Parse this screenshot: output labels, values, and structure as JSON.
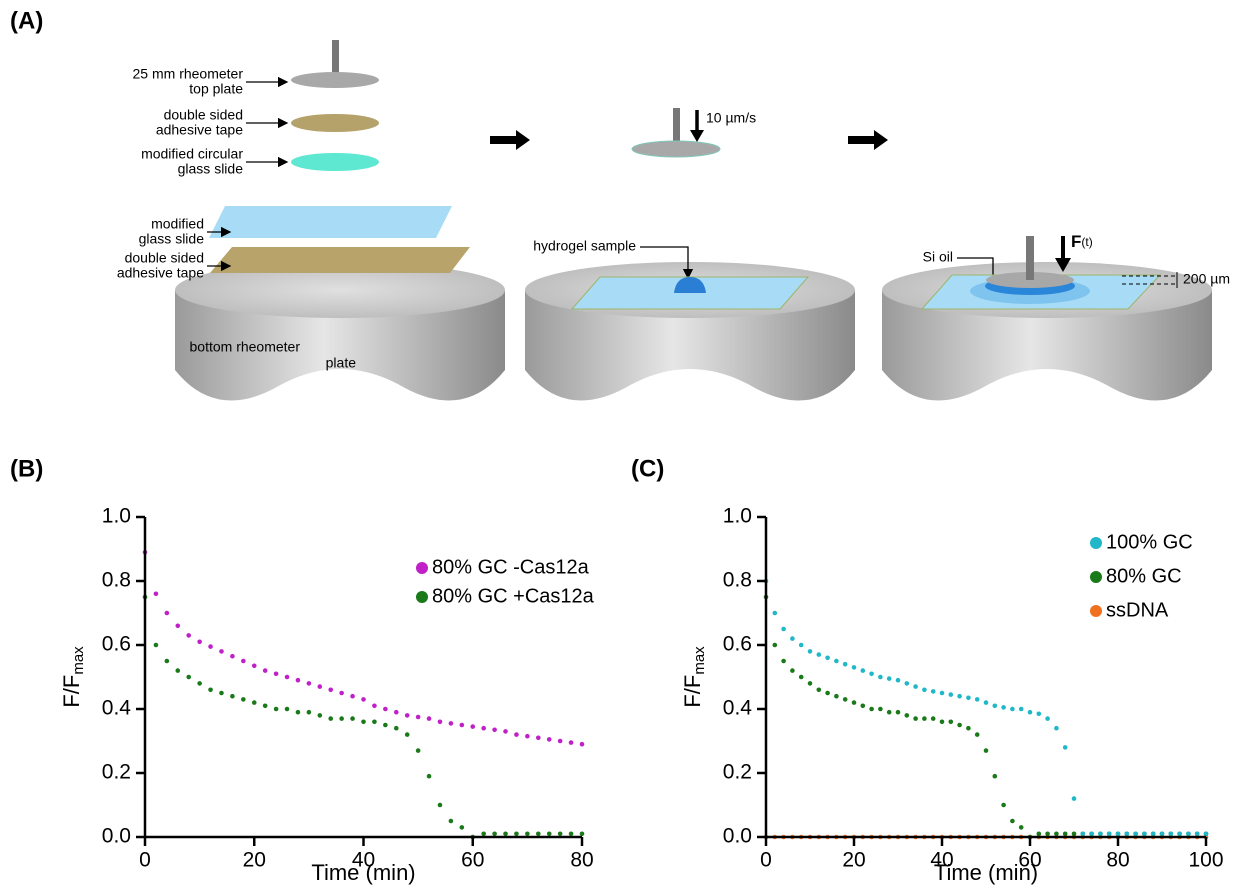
{
  "diagram": {
    "panel_label": "(A)",
    "top_plate": [
      "25 mm rheometer",
      "top plate"
    ],
    "tape_top": [
      "double sided",
      "adhesive tape"
    ],
    "circular_slide": [
      "modified circular",
      "glass slide"
    ],
    "glass_slide": [
      "modified",
      "glass slide"
    ],
    "tape_bottom": [
      "double sided",
      "adhesive tape"
    ],
    "bottom_plate": [
      "bottom rheometer",
      "plate"
    ],
    "speed": "10 µm/s",
    "hydrogel": "hydrogel sample",
    "si_oil": "Si oil",
    "force": "F",
    "force_sub": "(t)",
    "gap": "200 µm"
  },
  "chart_data": [
    {
      "type": "scatter",
      "panel_label": "(B)",
      "xlabel": "Time (min)",
      "ylabel": "F/F",
      "ylabel_sub": "max",
      "xlim": [
        0,
        80
      ],
      "xticks": [
        0,
        20,
        40,
        60,
        80
      ],
      "ylim": [
        0,
        1
      ],
      "yticks": [
        {
          "value": 0,
          "label": "0.0"
        },
        0.2,
        0.4,
        0.6,
        0.8,
        {
          "value": 1,
          "label": "1.0"
        }
      ],
      "legend": "upper right",
      "x": [
        0,
        2,
        4,
        6,
        8,
        10,
        12,
        14,
        16,
        18,
        20,
        22,
        24,
        26,
        28,
        30,
        32,
        34,
        36,
        38,
        40,
        42,
        44,
        46,
        48,
        50,
        52,
        54,
        56,
        58,
        60,
        62,
        64,
        66,
        68,
        70,
        72,
        74,
        76,
        78,
        80
      ],
      "series": [
        {
          "name": "80% GC -Cas12a",
          "color": "#c020c8",
          "values": [
            0.89,
            0.76,
            0.7,
            0.66,
            0.63,
            0.61,
            0.595,
            0.58,
            0.565,
            0.55,
            0.535,
            0.52,
            0.51,
            0.5,
            0.49,
            0.48,
            0.47,
            0.46,
            0.45,
            0.44,
            0.43,
            0.41,
            0.4,
            0.39,
            0.38,
            0.375,
            0.37,
            0.36,
            0.355,
            0.35,
            0.345,
            0.34,
            0.335,
            0.33,
            0.32,
            0.315,
            0.31,
            0.305,
            0.3,
            0.295,
            0.29
          ]
        },
        {
          "name": "80% GC +Cas12a",
          "color": "#1a7a1a",
          "values": [
            0.75,
            0.6,
            0.55,
            0.52,
            0.5,
            0.48,
            0.46,
            0.45,
            0.44,
            0.43,
            0.42,
            0.41,
            0.4,
            0.4,
            0.39,
            0.39,
            0.38,
            0.37,
            0.37,
            0.37,
            0.36,
            0.36,
            0.35,
            0.34,
            0.32,
            0.27,
            0.19,
            0.1,
            0.05,
            0.03,
            0.0,
            0.01,
            0.01,
            0.01,
            0.01,
            0.01,
            0.01,
            0.01,
            0.01,
            0.01,
            0.01
          ]
        }
      ]
    },
    {
      "type": "scatter",
      "panel_label": "(C)",
      "xlabel": "Time (min)",
      "ylabel": "F/F",
      "ylabel_sub": "max",
      "xlim": [
        0,
        100
      ],
      "xticks": [
        0,
        20,
        40,
        60,
        80,
        100
      ],
      "ylim": [
        0,
        1
      ],
      "yticks": [
        {
          "value": 0,
          "label": "0.0"
        },
        0.2,
        0.4,
        0.6,
        0.8,
        {
          "value": 1,
          "label": "1.0"
        }
      ],
      "legend": "upper right",
      "x": [
        0,
        2,
        4,
        6,
        8,
        10,
        12,
        14,
        16,
        18,
        20,
        22,
        24,
        26,
        28,
        30,
        32,
        34,
        36,
        38,
        40,
        42,
        44,
        46,
        48,
        50,
        52,
        54,
        56,
        58,
        60,
        62,
        64,
        66,
        68,
        70,
        72,
        74,
        76,
        78,
        80,
        82,
        84,
        86,
        88,
        90,
        92,
        94,
        96,
        98,
        100
      ],
      "series": [
        {
          "name": "100% GC",
          "color": "#20b8c8",
          "values": [
            0.8,
            0.7,
            0.65,
            0.62,
            0.6,
            0.58,
            0.57,
            0.56,
            0.55,
            0.54,
            0.53,
            0.52,
            0.51,
            0.5,
            0.495,
            0.49,
            0.48,
            0.47,
            0.46,
            0.455,
            0.45,
            0.445,
            0.44,
            0.435,
            0.43,
            0.42,
            0.41,
            0.405,
            0.4,
            0.4,
            0.39,
            0.385,
            0.37,
            0.34,
            0.28,
            0.12,
            0.01,
            0.01,
            0.01,
            0.01,
            0.01,
            0.01,
            0.01,
            0.01,
            0.01,
            0.01,
            0.01,
            0.01,
            0.01,
            0.01,
            0.01
          ]
        },
        {
          "name": "80% GC",
          "color": "#1a7a1a",
          "values": [
            0.75,
            0.6,
            0.55,
            0.52,
            0.5,
            0.48,
            0.46,
            0.45,
            0.44,
            0.43,
            0.42,
            0.41,
            0.4,
            0.4,
            0.39,
            0.39,
            0.38,
            0.37,
            0.37,
            0.37,
            0.36,
            0.36,
            0.35,
            0.34,
            0.32,
            0.27,
            0.19,
            0.1,
            0.05,
            0.03,
            0.0,
            0.01,
            0.01,
            0.01,
            0.01,
            0.01,
            0.01,
            0.01,
            0.01,
            0.01,
            0.01,
            0.01,
            0.01,
            0.01,
            0.01,
            0.01,
            0.01,
            0.01,
            0.01,
            0.01,
            0.01
          ]
        },
        {
          "name": "ssDNA",
          "color": "#f07020",
          "values": [
            0,
            0,
            0,
            0,
            0,
            0,
            0,
            0,
            0,
            0,
            0,
            0,
            0,
            0,
            0,
            0,
            0,
            0,
            0,
            0,
            0,
            0,
            0,
            0,
            0,
            0,
            0,
            0,
            0,
            0,
            0,
            0,
            0,
            0,
            0,
            0,
            0,
            0,
            0,
            0,
            0,
            0,
            0,
            0,
            0,
            0,
            0,
            0,
            0,
            0,
            0
          ]
        }
      ]
    }
  ]
}
